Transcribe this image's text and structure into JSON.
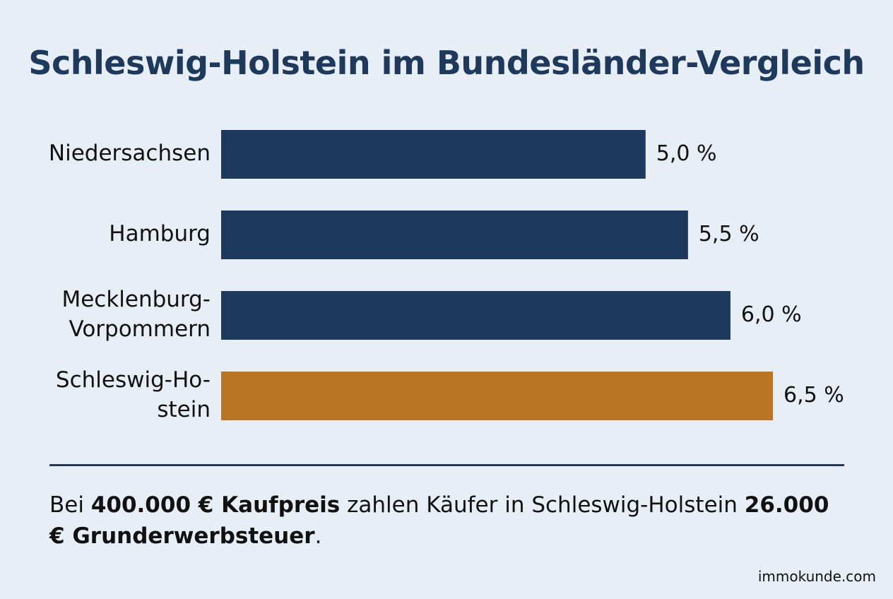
{
  "title": "Schleswig-Holstein im Bundesländer-Vergleich",
  "chart_data": {
    "type": "bar",
    "orientation": "horizontal",
    "categories": [
      "Niedersachsen",
      "Hamburg",
      "Mecklenburg-Vorpommern",
      "Schleswig-Holstein"
    ],
    "category_label_lines": [
      [
        "Niedersachsen"
      ],
      [
        "Hamburg"
      ],
      [
        "Mecklenburg-",
        "Vorpommern"
      ],
      [
        "Schleswig-Ho-",
        "stein"
      ]
    ],
    "values": [
      5.0,
      5.5,
      6.0,
      6.5
    ],
    "value_labels": [
      "5,0 %",
      "5,5 %",
      "6,0 %",
      "6,5 %"
    ],
    "colors": [
      "#1d3a5c",
      "#1d3a5c",
      "#1d3a5c",
      "#bb7422"
    ],
    "title": "Schleswig-Holstein im Bundesländer-Vergleich",
    "xlabel": "",
    "ylabel": "",
    "xlim": [
      0,
      6.5
    ],
    "grid": false,
    "legend": "none"
  },
  "note": {
    "part1": "Bei ",
    "bold1": "400.000 € Kaufpreis",
    "part2": " zahlen Käufer in Schleswig-Holstein ",
    "bold2": "26.000 € Grunderwerbsteuer",
    "part3": "."
  },
  "source": "immokunde.com",
  "colors": {
    "background": "#e8eef6",
    "primary": "#1d3a5c",
    "highlight": "#bb7422"
  }
}
